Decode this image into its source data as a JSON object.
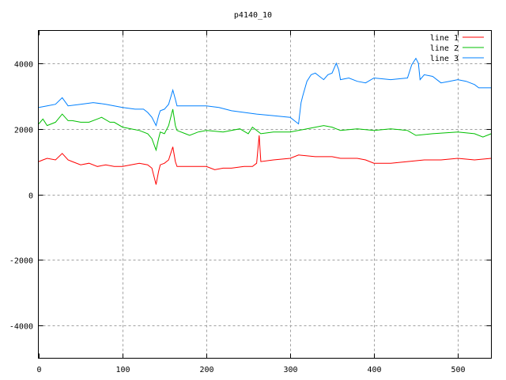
{
  "chart_data": {
    "type": "line",
    "title": "p4140_10",
    "xlabel": "",
    "ylabel": "",
    "xlim": [
      0,
      540
    ],
    "ylim": [
      -5000,
      5000
    ],
    "xticks": [
      0,
      100,
      200,
      300,
      400,
      500
    ],
    "yticks": [
      -4000,
      -2000,
      0,
      2000,
      4000
    ],
    "grid": true,
    "legend_position": "top-right",
    "series": [
      {
        "name": "line 1",
        "color": "#ff0000",
        "points": [
          [
            0,
            1000
          ],
          [
            5,
            1050
          ],
          [
            10,
            1100
          ],
          [
            20,
            1050
          ],
          [
            28,
            1250
          ],
          [
            35,
            1050
          ],
          [
            40,
            1000
          ],
          [
            50,
            900
          ],
          [
            60,
            950
          ],
          [
            70,
            850
          ],
          [
            80,
            900
          ],
          [
            90,
            850
          ],
          [
            100,
            850
          ],
          [
            110,
            900
          ],
          [
            120,
            950
          ],
          [
            130,
            900
          ],
          [
            135,
            800
          ],
          [
            140,
            300
          ],
          [
            143,
            700
          ],
          [
            145,
            900
          ],
          [
            150,
            950
          ],
          [
            155,
            1050
          ],
          [
            160,
            1450
          ],
          [
            163,
            1000
          ],
          [
            165,
            850
          ],
          [
            180,
            850
          ],
          [
            200,
            850
          ],
          [
            210,
            750
          ],
          [
            220,
            800
          ],
          [
            230,
            800
          ],
          [
            245,
            850
          ],
          [
            255,
            850
          ],
          [
            260,
            950
          ],
          [
            263,
            1800
          ],
          [
            265,
            1000
          ],
          [
            280,
            1050
          ],
          [
            300,
            1100
          ],
          [
            310,
            1200
          ],
          [
            330,
            1150
          ],
          [
            350,
            1150
          ],
          [
            360,
            1100
          ],
          [
            380,
            1100
          ],
          [
            390,
            1050
          ],
          [
            400,
            950
          ],
          [
            420,
            950
          ],
          [
            440,
            1000
          ],
          [
            460,
            1050
          ],
          [
            480,
            1050
          ],
          [
            500,
            1100
          ],
          [
            520,
            1050
          ],
          [
            540,
            1100
          ]
        ]
      },
      {
        "name": "line 2",
        "color": "#00c000",
        "points": [
          [
            0,
            2150
          ],
          [
            5,
            2300
          ],
          [
            10,
            2100
          ],
          [
            20,
            2200
          ],
          [
            28,
            2450
          ],
          [
            35,
            2250
          ],
          [
            40,
            2250
          ],
          [
            50,
            2200
          ],
          [
            60,
            2200
          ],
          [
            70,
            2300
          ],
          [
            75,
            2350
          ],
          [
            85,
            2200
          ],
          [
            90,
            2200
          ],
          [
            100,
            2050
          ],
          [
            110,
            2000
          ],
          [
            120,
            1950
          ],
          [
            130,
            1850
          ],
          [
            135,
            1700
          ],
          [
            140,
            1350
          ],
          [
            143,
            1700
          ],
          [
            145,
            1900
          ],
          [
            150,
            1850
          ],
          [
            155,
            2100
          ],
          [
            160,
            2600
          ],
          [
            163,
            2100
          ],
          [
            165,
            1950
          ],
          [
            175,
            1850
          ],
          [
            180,
            1800
          ],
          [
            190,
            1900
          ],
          [
            200,
            1950
          ],
          [
            220,
            1900
          ],
          [
            240,
            2000
          ],
          [
            250,
            1850
          ],
          [
            255,
            2050
          ],
          [
            265,
            1850
          ],
          [
            280,
            1900
          ],
          [
            300,
            1900
          ],
          [
            320,
            2000
          ],
          [
            340,
            2100
          ],
          [
            350,
            2050
          ],
          [
            360,
            1950
          ],
          [
            380,
            2000
          ],
          [
            400,
            1950
          ],
          [
            420,
            2000
          ],
          [
            440,
            1950
          ],
          [
            450,
            1800
          ],
          [
            470,
            1850
          ],
          [
            500,
            1900
          ],
          [
            520,
            1850
          ],
          [
            530,
            1750
          ],
          [
            540,
            1850
          ]
        ]
      },
      {
        "name": "line 3",
        "color": "#0080ff",
        "points": [
          [
            0,
            2650
          ],
          [
            10,
            2700
          ],
          [
            20,
            2750
          ],
          [
            28,
            2950
          ],
          [
            35,
            2700
          ],
          [
            50,
            2750
          ],
          [
            65,
            2800
          ],
          [
            80,
            2750
          ],
          [
            100,
            2650
          ],
          [
            115,
            2600
          ],
          [
            125,
            2600
          ],
          [
            130,
            2500
          ],
          [
            135,
            2350
          ],
          [
            140,
            2100
          ],
          [
            143,
            2400
          ],
          [
            145,
            2550
          ],
          [
            150,
            2600
          ],
          [
            155,
            2750
          ],
          [
            160,
            3180
          ],
          [
            163,
            2900
          ],
          [
            165,
            2700
          ],
          [
            180,
            2700
          ],
          [
            200,
            2700
          ],
          [
            215,
            2650
          ],
          [
            230,
            2550
          ],
          [
            245,
            2500
          ],
          [
            260,
            2450
          ],
          [
            280,
            2400
          ],
          [
            300,
            2350
          ],
          [
            305,
            2250
          ],
          [
            310,
            2150
          ],
          [
            313,
            2800
          ],
          [
            315,
            3000
          ],
          [
            320,
            3450
          ],
          [
            325,
            3650
          ],
          [
            330,
            3700
          ],
          [
            335,
            3600
          ],
          [
            340,
            3500
          ],
          [
            345,
            3650
          ],
          [
            350,
            3700
          ],
          [
            355,
            4000
          ],
          [
            358,
            3800
          ],
          [
            360,
            3500
          ],
          [
            370,
            3550
          ],
          [
            380,
            3450
          ],
          [
            390,
            3400
          ],
          [
            400,
            3550
          ],
          [
            420,
            3500
          ],
          [
            440,
            3550
          ],
          [
            445,
            3950
          ],
          [
            450,
            4150
          ],
          [
            453,
            4000
          ],
          [
            455,
            3500
          ],
          [
            460,
            3650
          ],
          [
            470,
            3600
          ],
          [
            480,
            3400
          ],
          [
            490,
            3450
          ],
          [
            500,
            3500
          ],
          [
            510,
            3450
          ],
          [
            520,
            3350
          ],
          [
            525,
            3250
          ],
          [
            540,
            3250
          ]
        ]
      }
    ]
  }
}
